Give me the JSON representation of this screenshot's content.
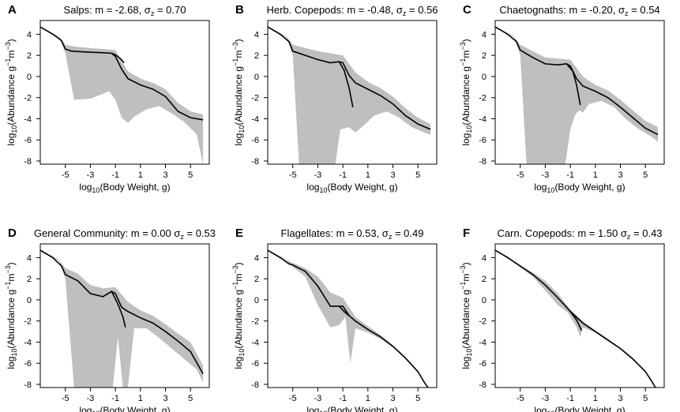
{
  "figure": {
    "x_ticks": [
      "-5",
      "-3",
      "-1",
      "1",
      "3",
      "5"
    ],
    "y_ticks": [
      "4",
      "2",
      "0",
      "-2",
      "-4",
      "-6",
      "-8"
    ],
    "xlabel": {
      "pre": "log",
      "sub": "10",
      "post": "(Body Weight, g)"
    },
    "ylabel": {
      "pre": "log",
      "sub": "10",
      "mid": "(Abundance g",
      "sup1": "−1",
      "m": "m",
      "sup2": "−3",
      "post": ")"
    }
  },
  "chart_data": [
    {
      "letter": "A",
      "type": "line",
      "group": "Salps",
      "title": {
        "pre": "Salps: m = -2.68, ",
        "sym": "σ",
        "sub": "z",
        "post": " = 0.70"
      },
      "m": -2.68,
      "sigma_z": 0.7,
      "xlim": [
        -7,
        6.5
      ],
      "ylim": [
        -8.3,
        5.3
      ],
      "line": [
        [
          -7,
          4.7
        ],
        [
          -6,
          4.0
        ],
        [
          -5.3,
          3.4
        ],
        [
          -5,
          2.6
        ],
        [
          -4.5,
          2.4
        ],
        [
          -3,
          2.3
        ],
        [
          -2,
          2.25
        ],
        [
          -1.3,
          2.2
        ],
        [
          -1,
          1.9
        ],
        [
          -0.5,
          0.7
        ],
        [
          0,
          -0.2
        ],
        [
          1,
          -0.8
        ],
        [
          2,
          -1.2
        ],
        [
          3,
          -1.9
        ],
        [
          4,
          -3.3
        ],
        [
          5,
          -3.9
        ],
        [
          6,
          -4.1
        ]
      ],
      "line_upper": [
        [
          -1.3,
          2.2
        ],
        [
          -1,
          2.05
        ],
        [
          -0.6,
          1.7
        ],
        [
          -0.3,
          1.3
        ]
      ],
      "band_upper": [
        [
          -7,
          4.75
        ],
        [
          -5.5,
          3.8
        ],
        [
          -5,
          3.0
        ],
        [
          -4,
          2.8
        ],
        [
          -2,
          2.6
        ],
        [
          -1,
          2.5
        ],
        [
          0,
          0.5
        ],
        [
          1,
          -0.2
        ],
        [
          2,
          -0.6
        ],
        [
          3,
          -1.2
        ],
        [
          4,
          -2.5
        ],
        [
          5,
          -3.3
        ],
        [
          6,
          -3.6
        ]
      ],
      "band_lower": [
        [
          -7,
          4.65
        ],
        [
          -5.5,
          3.7
        ],
        [
          -5,
          2.2
        ],
        [
          -4.3,
          -2.2
        ],
        [
          -3,
          -2.1
        ],
        [
          -1.5,
          -1.4
        ],
        [
          -1,
          -2.2
        ],
        [
          -0.5,
          -3.9
        ],
        [
          0,
          -4.4
        ],
        [
          0.5,
          -3.8
        ],
        [
          1.5,
          -3.1
        ],
        [
          2.5,
          -2.8
        ],
        [
          3.5,
          -3.5
        ],
        [
          4.5,
          -4.3
        ],
        [
          5.5,
          -5.5
        ],
        [
          6,
          -8.3
        ]
      ]
    },
    {
      "letter": "B",
      "type": "line",
      "group": "Herb. Copepods",
      "title": {
        "pre": "Herb. Copepods: m = -0.48, ",
        "sym": "σ",
        "sub": "z",
        "post": " = 0.56"
      },
      "m": -0.48,
      "sigma_z": 0.56,
      "xlim": [
        -7,
        6.5
      ],
      "ylim": [
        -8.3,
        5.3
      ],
      "line": [
        [
          -7,
          4.7
        ],
        [
          -6,
          4.0
        ],
        [
          -5.3,
          3.3
        ],
        [
          -5,
          2.4
        ],
        [
          -4,
          2.0
        ],
        [
          -3,
          1.6
        ],
        [
          -2,
          1.3
        ],
        [
          -1.3,
          1.4
        ],
        [
          -1,
          1.3
        ],
        [
          -0.5,
          0.1
        ],
        [
          0,
          -0.6
        ],
        [
          1,
          -1.2
        ],
        [
          2,
          -1.8
        ],
        [
          3,
          -2.6
        ],
        [
          4,
          -3.7
        ],
        [
          5,
          -4.5
        ],
        [
          6,
          -5.0
        ]
      ],
      "line_upper": [
        [
          -1.3,
          1.4
        ],
        [
          -0.9,
          0.6
        ],
        [
          -0.5,
          -1.1
        ],
        [
          -0.2,
          -2.9
        ]
      ],
      "band_upper": [
        [
          -7,
          4.75
        ],
        [
          -5.5,
          3.8
        ],
        [
          -5,
          3.0
        ],
        [
          -4,
          2.7
        ],
        [
          -3,
          2.4
        ],
        [
          -2,
          2.2
        ],
        [
          -1,
          2.0
        ],
        [
          0,
          0.4
        ],
        [
          1,
          -0.5
        ],
        [
          2,
          -1.1
        ],
        [
          3,
          -1.9
        ],
        [
          4,
          -3.0
        ],
        [
          5,
          -3.9
        ],
        [
          6,
          -4.5
        ]
      ],
      "band_lower": [
        [
          -7,
          4.65
        ],
        [
          -5.5,
          3.7
        ],
        [
          -5,
          2.0
        ],
        [
          -4.5,
          -8.3
        ],
        [
          -1.6,
          -8.3
        ],
        [
          -1.2,
          -5.0
        ],
        [
          -0.5,
          -4.8
        ],
        [
          0,
          -5.3
        ],
        [
          0.7,
          -4.6
        ],
        [
          1.5,
          -3.7
        ],
        [
          2.5,
          -3.3
        ],
        [
          3.5,
          -3.9
        ],
        [
          4.5,
          -4.8
        ],
        [
          5.5,
          -5.3
        ],
        [
          6,
          -5.5
        ]
      ]
    },
    {
      "letter": "C",
      "type": "line",
      "group": "Chaetognaths",
      "title": {
        "pre": "Chaetognaths: m = -0.20, ",
        "sym": "σ",
        "sub": "z",
        "post": " = 0.54"
      },
      "m": -0.2,
      "sigma_z": 0.54,
      "xlim": [
        -7,
        6.5
      ],
      "ylim": [
        -8.3,
        5.3
      ],
      "line": [
        [
          -7,
          4.7
        ],
        [
          -6,
          4.0
        ],
        [
          -5.3,
          3.3
        ],
        [
          -5,
          2.5
        ],
        [
          -4,
          1.8
        ],
        [
          -3,
          1.2
        ],
        [
          -2,
          1.1
        ],
        [
          -1.3,
          1.2
        ],
        [
          -1,
          1.0
        ],
        [
          -0.5,
          -0.2
        ],
        [
          0,
          -0.9
        ],
        [
          1,
          -1.4
        ],
        [
          2,
          -2.0
        ],
        [
          3,
          -2.9
        ],
        [
          4,
          -3.9
        ],
        [
          5,
          -4.9
        ],
        [
          6,
          -5.5
        ]
      ],
      "line_upper": [
        [
          -1.3,
          1.2
        ],
        [
          -0.8,
          0.5
        ],
        [
          -0.5,
          -0.8
        ],
        [
          -0.2,
          -2.7
        ]
      ],
      "band_upper": [
        [
          -7,
          4.75
        ],
        [
          -5.5,
          3.8
        ],
        [
          -5,
          3.0
        ],
        [
          -4,
          2.4
        ],
        [
          -3,
          1.8
        ],
        [
          -2,
          1.7
        ],
        [
          -1,
          1.6
        ],
        [
          0,
          0.0
        ],
        [
          1,
          -0.8
        ],
        [
          2,
          -1.3
        ],
        [
          3,
          -2.2
        ],
        [
          4,
          -3.2
        ],
        [
          5,
          -4.2
        ],
        [
          6,
          -4.8
        ]
      ],
      "band_lower": [
        [
          -7,
          4.65
        ],
        [
          -5.5,
          3.7
        ],
        [
          -5,
          2.0
        ],
        [
          -4.5,
          -8.3
        ],
        [
          -1.4,
          -8.3
        ],
        [
          -1.0,
          -5.0
        ],
        [
          -0.6,
          -3.6
        ],
        [
          -0.3,
          -3.2
        ],
        [
          0,
          -3.4
        ],
        [
          0.5,
          -2.6
        ],
        [
          1.5,
          -2.3
        ],
        [
          2.5,
          -2.9
        ],
        [
          3.5,
          -4.1
        ],
        [
          4.5,
          -5.0
        ],
        [
          5.5,
          -5.7
        ],
        [
          6,
          -6.2
        ]
      ]
    },
    {
      "letter": "D",
      "type": "line",
      "group": "General Community",
      "title": {
        "pre": "General Community: m = 0.00 ",
        "sym": "σ",
        "sub": "z",
        "post": " = 0.53"
      },
      "m": 0.0,
      "sigma_z": 0.53,
      "xlim": [
        -7,
        6.5
      ],
      "ylim": [
        -8.3,
        5.3
      ],
      "line": [
        [
          -7,
          4.7
        ],
        [
          -6,
          4.0
        ],
        [
          -5.3,
          3.2
        ],
        [
          -5,
          2.4
        ],
        [
          -4,
          1.8
        ],
        [
          -3,
          0.6
        ],
        [
          -2,
          0.3
        ],
        [
          -1.3,
          0.8
        ],
        [
          -1,
          0.6
        ],
        [
          -0.5,
          -0.7
        ],
        [
          0,
          -1.1
        ],
        [
          1,
          -1.7
        ],
        [
          2,
          -2.2
        ],
        [
          3,
          -3.0
        ],
        [
          4,
          -3.9
        ],
        [
          5,
          -4.9
        ],
        [
          6,
          -7.0
        ]
      ],
      "line_upper": [
        [
          -1.3,
          0.8
        ],
        [
          -0.8,
          -0.4
        ],
        [
          -0.4,
          -1.6
        ],
        [
          -0.2,
          -2.6
        ]
      ],
      "band_upper": [
        [
          -7,
          4.75
        ],
        [
          -5.5,
          3.8
        ],
        [
          -5,
          3.0
        ],
        [
          -4,
          2.5
        ],
        [
          -3,
          1.4
        ],
        [
          -2,
          1.1
        ],
        [
          -1,
          1.2
        ],
        [
          0,
          -0.2
        ],
        [
          1,
          -1.0
        ],
        [
          2,
          -1.5
        ],
        [
          3,
          -2.3
        ],
        [
          4,
          -3.2
        ],
        [
          5,
          -4.0
        ],
        [
          6,
          -6.2
        ]
      ],
      "band_lower": [
        [
          -7,
          4.65
        ],
        [
          -5.5,
          3.7
        ],
        [
          -5,
          2.0
        ],
        [
          -4.3,
          -8.3
        ],
        [
          -1.2,
          -8.3
        ],
        [
          -0.8,
          -3.5
        ],
        [
          -0.4,
          -8.3
        ],
        [
          0,
          -8.3
        ],
        [
          0.5,
          -2.7
        ],
        [
          1.5,
          -2.7
        ],
        [
          2.5,
          -3.6
        ],
        [
          3.5,
          -4.6
        ],
        [
          4.5,
          -5.6
        ],
        [
          5.5,
          -6.6
        ],
        [
          6,
          -7.8
        ]
      ]
    },
    {
      "letter": "E",
      "type": "line",
      "group": "Flagellates",
      "title": {
        "pre": "Flagellates: m = 0.53, ",
        "sym": "σ",
        "sub": "z",
        "post": " = 0.49"
      },
      "m": 0.53,
      "sigma_z": 0.49,
      "xlim": [
        -7,
        6.5
      ],
      "ylim": [
        -8.3,
        5.3
      ],
      "line": [
        [
          -7,
          4.7
        ],
        [
          -6,
          4.0
        ],
        [
          -5.3,
          3.4
        ],
        [
          -5,
          3.3
        ],
        [
          -4,
          2.7
        ],
        [
          -3,
          1.3
        ],
        [
          -2,
          -0.6
        ],
        [
          -1.3,
          -0.6
        ],
        [
          -1,
          -0.6
        ],
        [
          -0.5,
          -1.5
        ],
        [
          0,
          -2.0
        ],
        [
          1,
          -2.8
        ],
        [
          2,
          -3.5
        ],
        [
          3,
          -4.4
        ],
        [
          4,
          -5.5
        ],
        [
          5,
          -6.8
        ],
        [
          5.5,
          -7.8
        ],
        [
          5.8,
          -8.3
        ]
      ],
      "line_upper": [
        [
          -1.3,
          -0.6
        ],
        [
          -0.9,
          -1.1
        ],
        [
          -0.5,
          -1.5
        ]
      ],
      "band_upper": [
        [
          -7,
          4.75
        ],
        [
          -5.5,
          3.8
        ],
        [
          -5,
          3.5
        ],
        [
          -4,
          3.0
        ],
        [
          -3,
          2.2
        ],
        [
          -2,
          0.7
        ],
        [
          -1,
          0.2
        ],
        [
          0,
          -1.6
        ],
        [
          1,
          -2.5
        ],
        [
          2,
          -3.3
        ],
        [
          3,
          -4.3
        ],
        [
          4,
          -5.4
        ],
        [
          5,
          -6.7
        ],
        [
          5.8,
          -8.3
        ]
      ],
      "band_lower": [
        [
          -7,
          4.65
        ],
        [
          -5.5,
          3.7
        ],
        [
          -5,
          3.1
        ],
        [
          -4,
          2.2
        ],
        [
          -3,
          -0.5
        ],
        [
          -2,
          -2.6
        ],
        [
          -1.3,
          -2.4
        ],
        [
          -0.8,
          -1.6
        ],
        [
          -0.4,
          -6.0
        ],
        [
          0,
          -2.7
        ],
        [
          1,
          -3.1
        ],
        [
          2,
          -3.7
        ],
        [
          3,
          -4.5
        ],
        [
          4,
          -5.6
        ],
        [
          5,
          -6.9
        ],
        [
          5.8,
          -8.3
        ]
      ]
    },
    {
      "letter": "F",
      "type": "line",
      "group": "Carn. Copepods",
      "title": {
        "pre": "Carn. Copepods: m = 1.50 ",
        "sym": "σ",
        "sub": "z",
        "post": " = 0.43"
      },
      "m": 1.5,
      "sigma_z": 0.43,
      "xlim": [
        -7,
        6.5
      ],
      "ylim": [
        -8.3,
        5.3
      ],
      "line": [
        [
          -7,
          4.7
        ],
        [
          -6,
          4.0
        ],
        [
          -5,
          3.2
        ],
        [
          -4,
          2.4
        ],
        [
          -3,
          1.4
        ],
        [
          -2,
          0.2
        ],
        [
          -1.3,
          -0.7
        ],
        [
          -1,
          -1.1
        ],
        [
          0,
          -2.2
        ],
        [
          1,
          -3.0
        ],
        [
          2,
          -3.8
        ],
        [
          3,
          -4.6
        ],
        [
          4,
          -5.6
        ],
        [
          5,
          -6.8
        ],
        [
          5.5,
          -7.7
        ],
        [
          5.8,
          -8.3
        ]
      ],
      "line_upper": [
        [
          -1.0,
          -1.1
        ],
        [
          -0.5,
          -1.9
        ],
        [
          -0.1,
          -2.9
        ]
      ],
      "band_upper": [
        [
          -7,
          4.75
        ],
        [
          -6,
          4.1
        ],
        [
          -5,
          3.3
        ],
        [
          -4,
          2.6
        ],
        [
          -3,
          1.8
        ],
        [
          -2,
          0.6
        ],
        [
          -1,
          -0.9
        ],
        [
          0,
          -2.0
        ],
        [
          1,
          -2.9
        ],
        [
          2,
          -3.7
        ],
        [
          3,
          -4.6
        ],
        [
          4,
          -5.6
        ],
        [
          5,
          -6.8
        ],
        [
          5.8,
          -8.3
        ]
      ],
      "band_lower": [
        [
          -7,
          4.65
        ],
        [
          -6,
          3.9
        ],
        [
          -5,
          3.1
        ],
        [
          -4,
          2.2
        ],
        [
          -3,
          0.9
        ],
        [
          -2,
          -0.5
        ],
        [
          -1.2,
          -1.2
        ],
        [
          -0.5,
          -2.6
        ],
        [
          -0.2,
          -3.5
        ],
        [
          0,
          -2.6
        ],
        [
          1,
          -3.1
        ],
        [
          2,
          -3.9
        ],
        [
          3,
          -4.7
        ],
        [
          4,
          -5.7
        ],
        [
          5,
          -6.9
        ],
        [
          5.8,
          -8.3
        ]
      ]
    }
  ]
}
